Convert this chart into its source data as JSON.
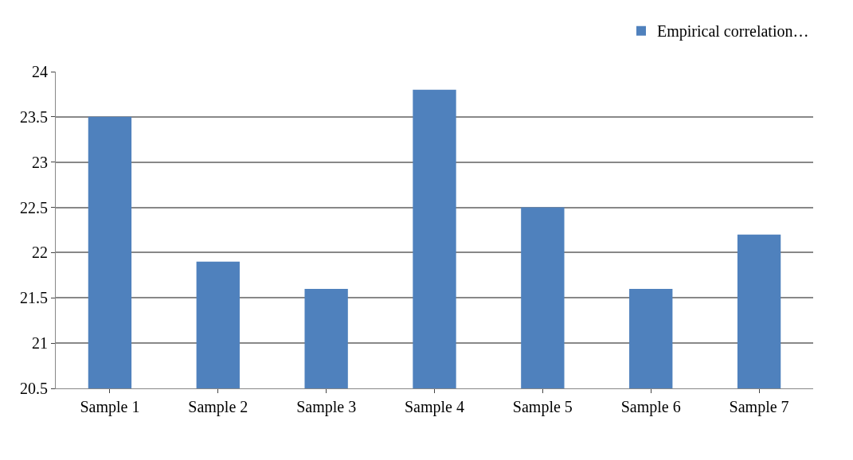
{
  "chart_data": {
    "type": "bar",
    "categories": [
      "Sample 1",
      "Sample 2",
      "Sample 3",
      "Sample 4",
      "Sample 5",
      "Sample 6",
      "Sample 7"
    ],
    "series": [
      {
        "name": "Empirical correlation…",
        "color": "#4f81bd",
        "values": [
          23.5,
          21.9,
          21.6,
          23.8,
          22.5,
          21.6,
          22.2
        ]
      }
    ],
    "ylim": [
      20.5,
      24
    ],
    "yticks": [
      20.5,
      21,
      21.5,
      22,
      22.5,
      23,
      23.5,
      24
    ],
    "grid": "y",
    "legend": "top right"
  }
}
